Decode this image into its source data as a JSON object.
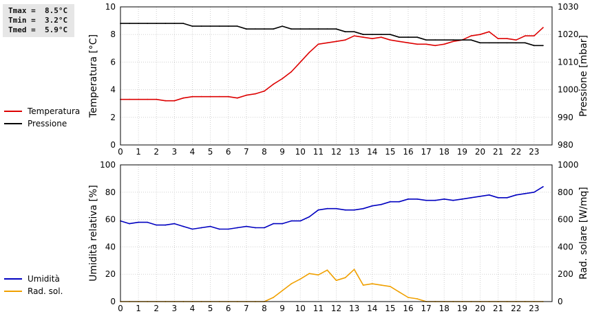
{
  "stats": {
    "tmax": "Tmax =  8.5°C",
    "tmin": "Tmin =  3.2°C",
    "tmed": "Tmed =  5.9°C"
  },
  "colors": {
    "temperature": "#dd0000",
    "pressure": "#000000",
    "humidity": "#0000c0",
    "radiation": "#f0a000"
  },
  "chart_data": [
    {
      "type": "line",
      "ylabel": "Temperatura [°C]",
      "y2label": "Pressione [mbar]",
      "xlim": [
        0,
        24
      ],
      "ylim": [
        0,
        10
      ],
      "y2lim": [
        980,
        1030
      ],
      "yticks": [
        0,
        2,
        4,
        6,
        8,
        10
      ],
      "y2ticks": [
        980,
        990,
        1000,
        1010,
        1020,
        1030
      ],
      "xticks": [
        0,
        1,
        2,
        3,
        4,
        5,
        6,
        7,
        8,
        9,
        10,
        11,
        12,
        13,
        14,
        15,
        16,
        17,
        18,
        19,
        20,
        21,
        22,
        23
      ],
      "grid": true,
      "legend_position": "left",
      "series": [
        {
          "name": "Temperatura",
          "axis": "left",
          "color": "#dd0000",
          "x": [
            0,
            0.5,
            1,
            1.5,
            2,
            2.5,
            3,
            3.5,
            4,
            4.5,
            5,
            5.5,
            6,
            6.5,
            7,
            7.5,
            8,
            8.5,
            9,
            9.5,
            10,
            10.5,
            11,
            11.5,
            12,
            12.5,
            13,
            13.5,
            14,
            14.5,
            15,
            15.5,
            16,
            16.5,
            17,
            17.5,
            18,
            18.5,
            19,
            19.5,
            20,
            20.5,
            21,
            21.5,
            22,
            22.5,
            23,
            23.5
          ],
          "values": [
            3.3,
            3.3,
            3.3,
            3.3,
            3.3,
            3.2,
            3.2,
            3.4,
            3.5,
            3.5,
            3.5,
            3.5,
            3.5,
            3.4,
            3.6,
            3.7,
            3.9,
            4.4,
            4.8,
            5.3,
            6.0,
            6.7,
            7.3,
            7.4,
            7.5,
            7.6,
            7.9,
            7.8,
            7.7,
            7.8,
            7.6,
            7.5,
            7.4,
            7.3,
            7.3,
            7.2,
            7.3,
            7.5,
            7.6,
            7.9,
            8.0,
            8.2,
            7.7,
            7.7,
            7.6,
            7.9,
            7.9,
            8.5
          ]
        },
        {
          "name": "Pressione",
          "axis": "right",
          "color": "#000000",
          "x": [
            0,
            0.5,
            1,
            1.5,
            2,
            2.5,
            3,
            3.5,
            4,
            4.5,
            5,
            5.5,
            6,
            6.5,
            7,
            7.5,
            8,
            8.5,
            9,
            9.5,
            10,
            10.5,
            11,
            11.5,
            12,
            12.5,
            13,
            13.5,
            14,
            14.5,
            15,
            15.5,
            16,
            16.5,
            17,
            17.5,
            18,
            18.5,
            19,
            19.5,
            20,
            20.5,
            21,
            21.5,
            22,
            22.5,
            23,
            23.5
          ],
          "values": [
            1024,
            1024,
            1024,
            1024,
            1024,
            1024,
            1024,
            1024,
            1023,
            1023,
            1023,
            1023,
            1023,
            1023,
            1022,
            1022,
            1022,
            1022,
            1023,
            1022,
            1022,
            1022,
            1022,
            1022,
            1022,
            1021,
            1021,
            1020,
            1020,
            1020,
            1020,
            1019,
            1019,
            1019,
            1018,
            1018,
            1018,
            1018,
            1018,
            1018,
            1017,
            1017,
            1017,
            1017,
            1017,
            1017,
            1016,
            1016
          ]
        }
      ]
    },
    {
      "type": "line",
      "ylabel": "Umidità relativa [%]",
      "y2label": "Rad. solare [W/mq]",
      "xlim": [
        0,
        24
      ],
      "ylim": [
        0,
        100
      ],
      "y2lim": [
        0,
        1000
      ],
      "yticks": [
        0,
        20,
        40,
        60,
        80,
        100
      ],
      "y2ticks": [
        0,
        200,
        400,
        600,
        800,
        1000
      ],
      "xticks": [
        0,
        1,
        2,
        3,
        4,
        5,
        6,
        7,
        8,
        9,
        10,
        11,
        12,
        13,
        14,
        15,
        16,
        17,
        18,
        19,
        20,
        21,
        22,
        23
      ],
      "grid": true,
      "legend_position": "left",
      "series": [
        {
          "name": "Umidità",
          "axis": "left",
          "color": "#0000c0",
          "x": [
            0,
            0.5,
            1,
            1.5,
            2,
            2.5,
            3,
            3.5,
            4,
            4.5,
            5,
            5.5,
            6,
            6.5,
            7,
            7.5,
            8,
            8.5,
            9,
            9.5,
            10,
            10.5,
            11,
            11.5,
            12,
            12.5,
            13,
            13.5,
            14,
            14.5,
            15,
            15.5,
            16,
            16.5,
            17,
            17.5,
            18,
            18.5,
            19,
            19.5,
            20,
            20.5,
            21,
            21.5,
            22,
            22.5,
            23,
            23.5
          ],
          "values": [
            59,
            57,
            58,
            58,
            56,
            56,
            57,
            55,
            53,
            54,
            55,
            53,
            53,
            54,
            55,
            54,
            54,
            57,
            57,
            59,
            59,
            62,
            67,
            68,
            68,
            67,
            67,
            68,
            70,
            71,
            73,
            73,
            75,
            75,
            74,
            74,
            75,
            74,
            75,
            76,
            77,
            78,
            76,
            76,
            78,
            79,
            80,
            84
          ]
        },
        {
          "name": "Rad. sol.",
          "axis": "right",
          "color": "#f0a000",
          "x": [
            0,
            0.5,
            1,
            1.5,
            2,
            2.5,
            3,
            3.5,
            4,
            4.5,
            5,
            5.5,
            6,
            6.5,
            7,
            7.5,
            8,
            8.5,
            9,
            9.5,
            10,
            10.5,
            11,
            11.5,
            12,
            12.5,
            13,
            13.5,
            14,
            14.5,
            15,
            15.5,
            16,
            16.5,
            17,
            17.5,
            18,
            18.5,
            19,
            19.5,
            20,
            20.5,
            21,
            21.5,
            22,
            22.5,
            23,
            23.5
          ],
          "values": [
            0,
            0,
            0,
            0,
            0,
            0,
            0,
            0,
            0,
            0,
            0,
            0,
            0,
            0,
            0,
            0,
            0,
            30,
            80,
            130,
            165,
            205,
            195,
            230,
            155,
            175,
            235,
            120,
            130,
            120,
            110,
            70,
            30,
            20,
            0,
            0,
            0,
            0,
            0,
            0,
            0,
            0,
            0,
            0,
            0,
            0,
            0,
            0
          ]
        }
      ]
    }
  ]
}
